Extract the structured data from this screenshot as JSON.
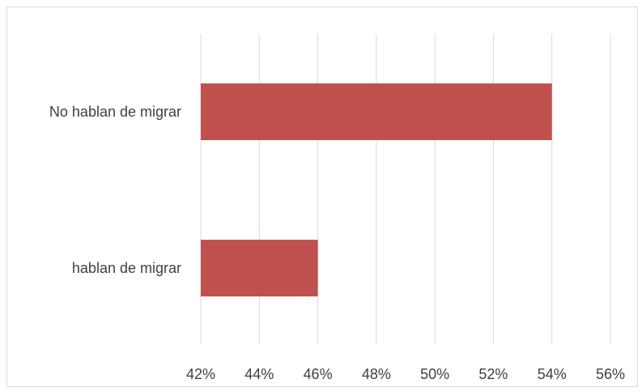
{
  "chart_data": {
    "type": "bar",
    "orientation": "horizontal",
    "categories": [
      "No hablan de migrar",
      "hablan de migrar"
    ],
    "values": [
      54,
      46
    ],
    "x_ticks": [
      "42%",
      "44%",
      "46%",
      "48%",
      "50%",
      "52%",
      "54%",
      "56%"
    ],
    "xlim": [
      42,
      56
    ],
    "grid": true,
    "legend": "none",
    "bar_color": "#c0504d",
    "title": "",
    "xlabel": "",
    "ylabel": ""
  }
}
